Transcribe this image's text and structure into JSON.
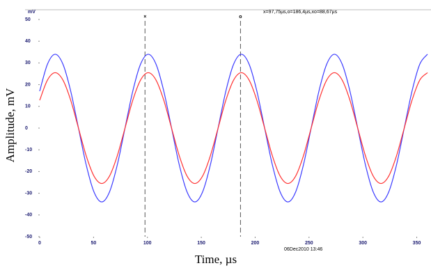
{
  "chart_data": {
    "type": "line",
    "y_unit": "mV",
    "readout": "x=97,75µs,o=186,4µs,xo=88,67µs",
    "timestamp": "06Dec2010 13:46",
    "x_label": "Time, µs",
    "y_label": "Amplitude, mV",
    "x": [
      0,
      7.2,
      14.4,
      21.6,
      28.8,
      36,
      43.2,
      50.4,
      57.6,
      64.8,
      72,
      79.2,
      86.4,
      93.6,
      100.8,
      108,
      115.2,
      122.4,
      129.6,
      136.8,
      144,
      151.2,
      158.4,
      165.6,
      172.8,
      180,
      187.2,
      194.4,
      201.6,
      208.8,
      216,
      223.2,
      230.4,
      237.6,
      244.8,
      252,
      259.2,
      266.4,
      273.6,
      280.8,
      288,
      295.2,
      302.4,
      309.6,
      316.8,
      324,
      331.2,
      338.4,
      345.6,
      352.8,
      360
    ],
    "series": [
      {
        "color": "#3a3aff",
        "values": [
          17,
          29.4,
          34,
          29.4,
          17,
          0,
          -17,
          -29.4,
          -34,
          -29.4,
          -17,
          0,
          17,
          29.4,
          34,
          29.4,
          17,
          0,
          -17,
          -29.4,
          -34,
          -29.4,
          -17,
          0,
          17,
          29.4,
          34,
          29.4,
          17,
          0,
          -17,
          -29.4,
          -34,
          -29.4,
          -17,
          0,
          17,
          29.4,
          34,
          29.4,
          17,
          0,
          -17,
          -29.4,
          -34,
          -29.4,
          -17,
          0,
          17,
          29.4,
          34
        ]
      },
      {
        "color": "#ff3030",
        "values": [
          12.8,
          22.1,
          25.5,
          22.1,
          12.8,
          0,
          -12.8,
          -22.1,
          -25.5,
          -22.1,
          -12.8,
          0,
          12.8,
          22.1,
          25.5,
          22.1,
          12.8,
          0,
          -12.8,
          -22.1,
          -25.5,
          -22.1,
          -12.8,
          0,
          12.8,
          22.1,
          25.5,
          22.1,
          12.8,
          0,
          -12.8,
          -22.1,
          -25.5,
          -22.1,
          -12.8,
          0,
          12.8,
          22.1,
          25.5,
          22.1,
          12.8,
          0,
          -12.8,
          -22.1,
          -25.5,
          -22.1,
          -12.8,
          0,
          12.8,
          22.1,
          25.5
        ]
      }
    ],
    "cursors": [
      {
        "label": "×",
        "x": 97.75
      },
      {
        "label": "o",
        "x": 186.4
      }
    ],
    "xlim": [
      0,
      360
    ],
    "ylim": [
      -50,
      50
    ],
    "xticks": [
      0,
      50,
      100,
      150,
      200,
      250,
      300,
      350
    ],
    "yticks": [
      -50,
      -40,
      -30,
      -20,
      -10,
      0,
      10,
      20,
      30,
      40,
      50
    ],
    "grid": false
  }
}
